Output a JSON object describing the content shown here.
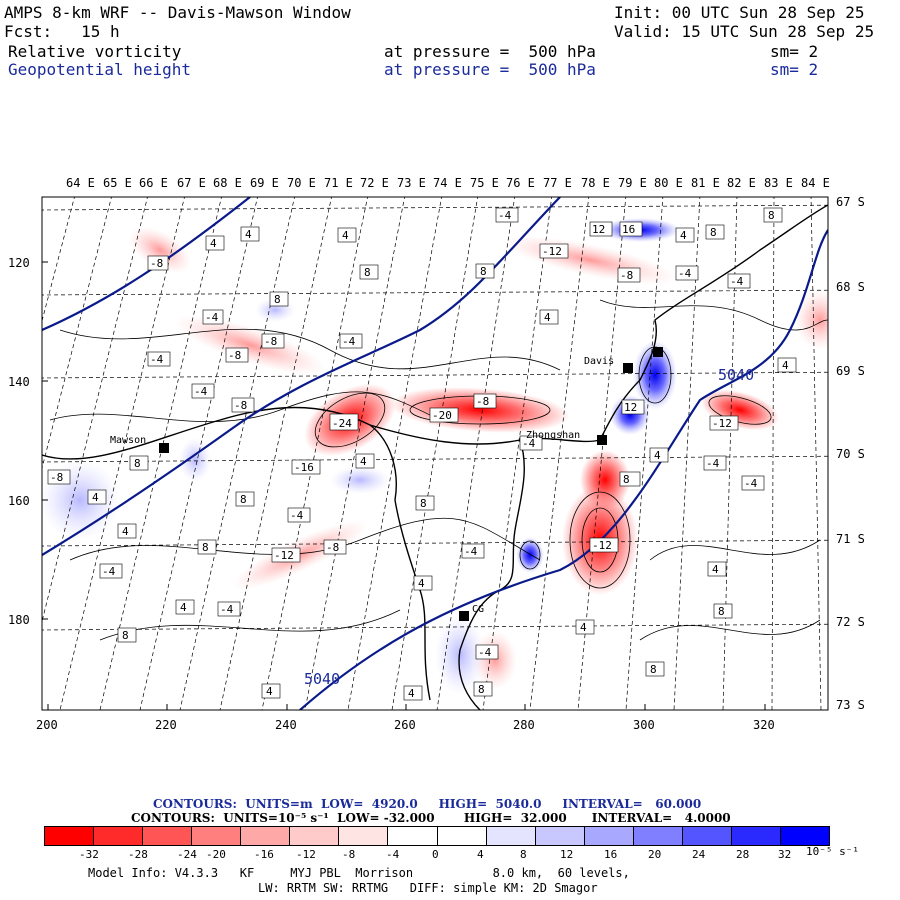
{
  "header": {
    "title": "AMPS 8-km WRF -- Davis-Mawson Window",
    "init": "Init: 00 UTC Sun 28 Sep 25",
    "fcst": "Fcst:   15 h",
    "valid": "Valid: 15 UTC Sun 28 Sep 25",
    "field1": {
      "name": "Relative vorticity",
      "level": "at pressure =  500 hPa",
      "sm": "sm= 2"
    },
    "field2": {
      "name": "Geopotential height",
      "level": "at pressure =  500 hPa",
      "sm": "sm= 2"
    }
  },
  "map": {
    "lon_labels": [
      "64 E",
      "65 E",
      "66 E",
      "67 E",
      "68 E",
      "69 E",
      "70 E",
      "71 E",
      "72 E",
      "73 E",
      "74 E",
      "75 E",
      "76 E",
      "77 E",
      "78 E",
      "79 E",
      "80 E",
      "81 E",
      "82 E",
      "83 E",
      "84 E"
    ],
    "lat_labels": [
      "67 S",
      "68 S",
      "69 S",
      "70 S",
      "71 S",
      "72 S",
      "73 S"
    ],
    "y_ticks": [
      "120",
      "140",
      "160",
      "180"
    ],
    "x_ticks": [
      "200",
      "220",
      "240",
      "260",
      "280",
      "300",
      "320"
    ],
    "stations": [
      {
        "name": "Mawson",
        "x": 164,
        "y": 448
      },
      {
        "name": "Davis",
        "x": 628,
        "y": 368
      },
      {
        "name": "Zhongshan",
        "x": 602,
        "y": 440
      },
      {
        "name": "CG",
        "x": 464,
        "y": 616
      },
      {
        "name": "",
        "x": 658,
        "y": 352
      }
    ],
    "height_labels": [
      "5040",
      "5040"
    ],
    "vort_labels": [
      "-4",
      "4",
      "8",
      "-8",
      "-12",
      "-16",
      "-20",
      "-24",
      "12",
      "16",
      "-4",
      "4",
      "8",
      "-8",
      "-12"
    ]
  },
  "contour_info": {
    "line1": "CONTOURS:  UNITS=m  LOW=  4920.0     HIGH=  5040.0     INTERVAL=   60.000",
    "line2": "CONTOURS:  UNITS=10⁻⁵ s⁻¹  LOW= -32.000       HIGH=  32.000      INTERVAL=   4.0000"
  },
  "colorbar": {
    "colors": [
      "#ff0000",
      "#ff2a2a",
      "#ff5555",
      "#ff7f7f",
      "#ffa8a8",
      "#ffcaca",
      "#ffe4e4",
      "#ffffff",
      "#ffffff",
      "#e4e4ff",
      "#c8c8ff",
      "#a8a8ff",
      "#7f7fff",
      "#5555ff",
      "#2a2aff",
      "#0000ff"
    ],
    "labels": [
      "-32",
      "-28",
      "-24",
      "-20",
      "-16",
      "-12",
      "-8",
      "-4",
      "0",
      "4",
      "8",
      "12",
      "16",
      "20",
      "24",
      "28",
      "32"
    ],
    "units": "10⁻⁵ s⁻¹"
  },
  "footer": {
    "line1": "Model Info: V4.3.3   KF     MYJ PBL  Morrison           8.0 km,  60 levels,",
    "line2": "LW: RRTM SW: RRTMG   DIFF: simple KM: 2D Smagor"
  }
}
